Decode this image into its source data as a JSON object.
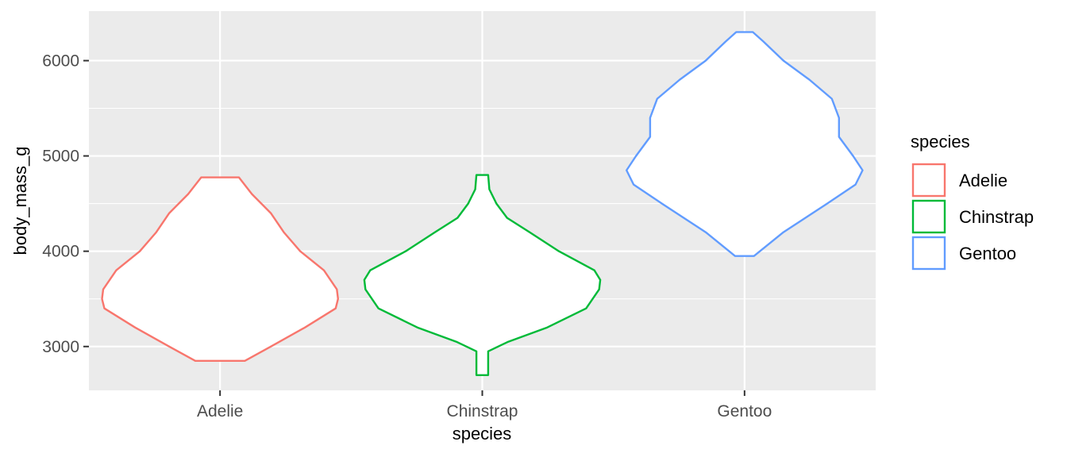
{
  "chart_data": {
    "type": "violin",
    "xlabel": "species",
    "ylabel": "body_mass_g",
    "categories": [
      "Adelie",
      "Chinstrap",
      "Gentoo"
    ],
    "ylim": [
      2540,
      6520
    ],
    "yticks": [
      3000,
      4000,
      5000,
      6000
    ],
    "yticks_labels": [
      "3000",
      "4000",
      "5000",
      "6000"
    ],
    "grid": true,
    "legend": {
      "title": "species",
      "position": "right",
      "entries": [
        "Adelie",
        "Chinstrap",
        "Gentoo"
      ]
    },
    "series": [
      {
        "name": "Adelie",
        "color": "#F8766D",
        "min": 2850,
        "max": 4775,
        "profile": [
          [
            2850,
            0.21
          ],
          [
            3000,
            0.43
          ],
          [
            3200,
            0.72
          ],
          [
            3400,
            0.98
          ],
          [
            3500,
            1.0
          ],
          [
            3600,
            0.99
          ],
          [
            3800,
            0.88
          ],
          [
            4000,
            0.68
          ],
          [
            4200,
            0.54
          ],
          [
            4400,
            0.43
          ],
          [
            4600,
            0.27
          ],
          [
            4775,
            0.16
          ]
        ]
      },
      {
        "name": "Chinstrap",
        "color": "#00BA38",
        "min": 2700,
        "max": 4800,
        "profile": [
          [
            2700,
            0.05
          ],
          [
            2950,
            0.05
          ],
          [
            3050,
            0.22
          ],
          [
            3200,
            0.55
          ],
          [
            3400,
            0.88
          ],
          [
            3600,
            0.99
          ],
          [
            3700,
            1.0
          ],
          [
            3800,
            0.95
          ],
          [
            4000,
            0.65
          ],
          [
            4200,
            0.4
          ],
          [
            4350,
            0.21
          ],
          [
            4500,
            0.12
          ],
          [
            4650,
            0.06
          ],
          [
            4800,
            0.05
          ]
        ]
      },
      {
        "name": "Gentoo",
        "color": "#619CFF",
        "min": 3950,
        "max": 6300,
        "profile": [
          [
            3950,
            0.08
          ],
          [
            4200,
            0.33
          ],
          [
            4500,
            0.7
          ],
          [
            4700,
            0.94
          ],
          [
            4850,
            1.0
          ],
          [
            5000,
            0.92
          ],
          [
            5200,
            0.8
          ],
          [
            5400,
            0.8
          ],
          [
            5600,
            0.74
          ],
          [
            5800,
            0.55
          ],
          [
            6000,
            0.33
          ],
          [
            6200,
            0.16
          ],
          [
            6300,
            0.07
          ]
        ]
      }
    ]
  }
}
